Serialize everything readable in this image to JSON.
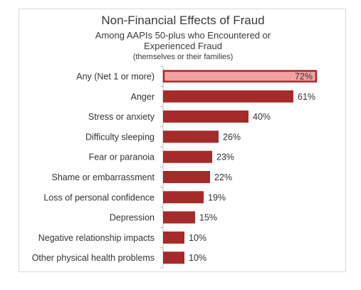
{
  "chart_data": {
    "type": "bar",
    "orientation": "horizontal",
    "title": "Non-Financial Effects of Fraud",
    "subtitle": "Among AAPIs 50-plus who Encountered or Experienced Fraud",
    "note": "(themselves or their families)",
    "categories": [
      "Any (Net 1 or more)",
      "Anger",
      "Stress or anxiety",
      "Difficulty sleeping",
      "Fear or paranoia",
      "Shame or embarrassment",
      "Loss of personal confidence",
      "Depression",
      "Negative relationship impacts",
      "Other physical health problems"
    ],
    "values": [
      72,
      61,
      40,
      26,
      23,
      22,
      19,
      15,
      10,
      10
    ],
    "value_labels": [
      "72%",
      "61%",
      "40%",
      "26%",
      "23%",
      "22%",
      "19%",
      "15%",
      "10%",
      "10%"
    ],
    "highlight_index": 0,
    "xlim": [
      0,
      100
    ],
    "grid": false,
    "colors": {
      "bar": "#a52a2a",
      "highlight_fill": "#f2a0a0",
      "highlight_border": "#a52a2a",
      "axis": "#bfbfbf",
      "text": "#333333"
    }
  }
}
